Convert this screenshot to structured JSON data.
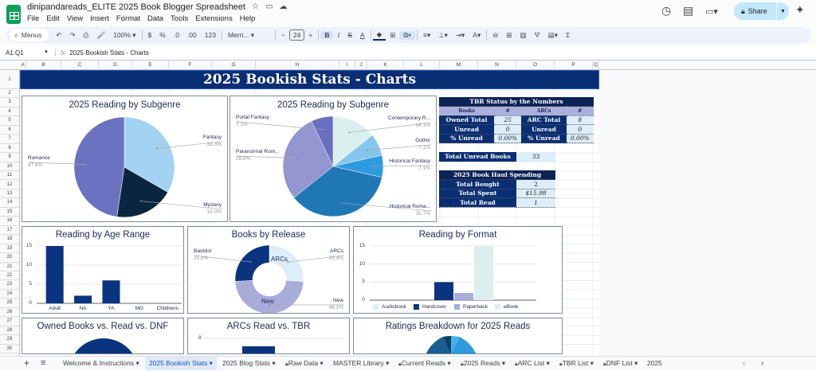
{
  "app": {
    "doc_title": "dinipandareads_ELITE 2025 Book Blogger Spreadsheet",
    "menu": [
      "File",
      "Edit",
      "View",
      "Insert",
      "Format",
      "Data",
      "Tools",
      "Extensions",
      "Help"
    ],
    "share_label": "Share"
  },
  "toolbar": {
    "search_placeholder": "Menus",
    "zoom": "100%",
    "currency": "$",
    "percent": "%",
    "dec_decrease": ".0",
    "dec_increase": ".00",
    "more_formats": "123",
    "font": "Merri...",
    "font_size": "24",
    "bold": "B",
    "italic": "I",
    "strike": "S",
    "text_color": "A",
    "sum": "Σ"
  },
  "formula_bar": {
    "cell_ref": "A1:Q1",
    "fx": "fx",
    "content": "2025 Bookish Stats - Charts"
  },
  "columns": [
    "A",
    "B",
    "C",
    "D",
    "E",
    "F",
    "G",
    "H",
    "I",
    "J",
    "K",
    "L",
    "M",
    "N",
    "O",
    "P",
    "Q"
  ],
  "rows": [
    "1",
    "2",
    "3",
    "4",
    "5",
    "6",
    "7",
    "8",
    "9",
    "10",
    "11",
    "12",
    "13",
    "14",
    "15",
    "16",
    "17",
    "18",
    "19",
    "20",
    "21",
    "22",
    "23",
    "24",
    "25",
    "26",
    "27",
    "28",
    "29",
    "30"
  ],
  "sheet_title": "2025 Bookish Stats - Charts",
  "colors": {
    "navy": "#0a2e73",
    "accent": "#0b57d0",
    "header_dark": "#0c2357",
    "cell_light": "#ddeefa"
  },
  "chart_data": [
    {
      "type": "pie",
      "title": "2025 Reading by Subgenre",
      "categories": [
        "Fantasy",
        "Mystery",
        "Romance"
      ],
      "values": [
        33.3,
        19.0,
        47.6
      ],
      "labels": [
        "33.3%",
        "19.0%",
        "47.6%"
      ],
      "colors": [
        "#a3d3f2",
        "#0b2540",
        "#6a73c1"
      ]
    },
    {
      "type": "pie",
      "title": "2025 Reading by Subgenre",
      "categories": [
        "Contemporary R...",
        "Gothic",
        "Historical Fantasy",
        "Historical Roma...",
        "Paranormal Rom...",
        "Portal Fantasy"
      ],
      "values": [
        14.3,
        7.1,
        7.1,
        35.7,
        28.6,
        7.1
      ],
      "labels": [
        "14.3%",
        "7.1%",
        "7.1%",
        "35.7%",
        "28.6%",
        "7.1%"
      ],
      "colors": [
        "#dcefef",
        "#86c6ec",
        "#2e9ae0",
        "#1f78b4",
        "#9396d0",
        "#6a70c0"
      ]
    },
    {
      "type": "bar",
      "title": "Reading by Age Range",
      "categories": [
        "Adult",
        "NA",
        "YA",
        "MG",
        "Childrens"
      ],
      "values": [
        15,
        2,
        6,
        0,
        0
      ],
      "ylim": [
        0,
        15
      ],
      "yticks": [
        "0",
        "5",
        "10",
        "15"
      ],
      "grid": true,
      "color": "#0a3480"
    },
    {
      "type": "pie",
      "donut": true,
      "title": "Books by Release",
      "categories": [
        "ARCs",
        "New",
        "Backlist"
      ],
      "values": [
        25.9,
        48.1,
        25.9
      ],
      "labels": [
        "25.9%",
        "48.1%",
        "25.9%"
      ],
      "colors": [
        "#dceefb",
        "#a9acd9",
        "#0a3480"
      ]
    },
    {
      "type": "bar",
      "title": "Reading by Format",
      "series": [
        {
          "name": "Audiobook",
          "values": [
            0
          ],
          "color": "#dceefb"
        },
        {
          "name": "Hardcover",
          "values": [
            5
          ],
          "color": "#0a3480"
        },
        {
          "name": "Paperback",
          "values": [
            2
          ],
          "color": "#a9acd9"
        },
        {
          "name": "eBook",
          "values": [
            15
          ],
          "color": "#dcefef"
        }
      ],
      "ylim": [
        0,
        15
      ],
      "yticks": [
        "0",
        "5",
        "10",
        "15"
      ],
      "grid": true,
      "legend": "bottom"
    },
    {
      "type": "pie",
      "title": "Owned Books vs. Read vs. DNF"
    },
    {
      "type": "bar",
      "title": "ARCs Read vs. TBR",
      "yticks": [
        "8"
      ]
    },
    {
      "type": "pie",
      "title": "Ratings Breakdown for 2025 Reads"
    }
  ],
  "tbr_table": {
    "title": "TBR Status by the Numbers",
    "headers": [
      "Books",
      "#",
      "ARCs",
      "#"
    ],
    "rows": [
      [
        "Owned Total",
        "25",
        "ARC Total",
        "8"
      ],
      [
        "Unread",
        "0",
        "Unread",
        "0"
      ],
      [
        "% Unread",
        "0.00%",
        "% Unread",
        "0.00%"
      ]
    ]
  },
  "total_unread": {
    "label": "Total Unread Books",
    "value": "33"
  },
  "haul_table": {
    "title": "2025 Book Haul Spending",
    "rows": [
      [
        "Total Bought",
        "2"
      ],
      [
        "Total Spent",
        "$15.98"
      ],
      [
        "Total Read",
        "1"
      ]
    ]
  },
  "tabs": [
    {
      "label": "Welcome & Instructions ▾",
      "locked": false
    },
    {
      "label": "2025 Bookish Stats ▾",
      "locked": false,
      "selected": true
    },
    {
      "label": "2025 Blog Stats ▾",
      "locked": false
    },
    {
      "label": "Raw Data ▾",
      "locked": true
    },
    {
      "label": "MASTER Library ▾",
      "locked": false
    },
    {
      "label": "Current Reads ▾",
      "locked": true
    },
    {
      "label": "2025 Reads ▾",
      "locked": true
    },
    {
      "label": "ARC List ▾",
      "locked": true
    },
    {
      "label": "TBR List ▾",
      "locked": true
    },
    {
      "label": "DNF List ▾",
      "locked": true
    },
    {
      "label": "2025",
      "locked": false
    }
  ]
}
